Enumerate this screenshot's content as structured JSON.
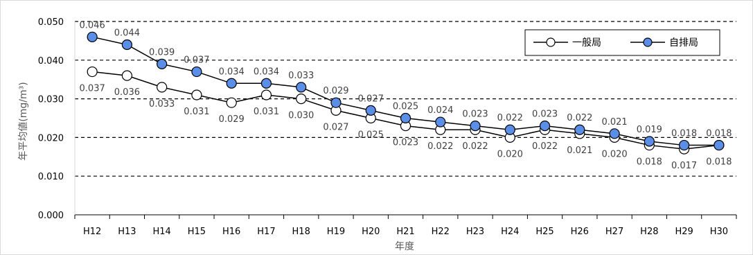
{
  "chart_data": {
    "type": "line",
    "categories": [
      "H12",
      "H13",
      "H14",
      "H15",
      "H16",
      "H17",
      "H18",
      "H19",
      "H20",
      "H21",
      "H22",
      "H23",
      "H24",
      "H25",
      "H26",
      "H27",
      "H28",
      "H29",
      "H30"
    ],
    "series": [
      {
        "name": "一般局",
        "values": [
          0.037,
          0.036,
          0.033,
          0.031,
          0.029,
          0.031,
          0.03,
          0.027,
          0.025,
          0.023,
          0.022,
          0.022,
          0.02,
          0.022,
          0.021,
          0.02,
          0.018,
          0.017,
          0.018
        ],
        "labels": [
          "0.037",
          "0.036",
          "0.033",
          "0.031",
          "0.029",
          "0.031",
          "0.030",
          "0.027",
          "0.025",
          "0.023",
          "0.022",
          "0.022",
          "0.020",
          "0.022",
          "0.021",
          "0.020",
          "0.018",
          "0.017",
          "0.018"
        ],
        "marker_fill": "#ffffff",
        "marker_stroke": "#000000",
        "line_color": "#000000"
      },
      {
        "name": "自排局",
        "values": [
          0.046,
          0.044,
          0.039,
          0.037,
          0.034,
          0.034,
          0.033,
          0.029,
          0.027,
          0.025,
          0.024,
          0.023,
          0.022,
          0.023,
          0.022,
          0.021,
          0.019,
          0.018,
          0.018
        ],
        "labels": [
          "0.046",
          "0.044",
          "0.039",
          "0.037",
          "0.034",
          "0.034",
          "0.033",
          "0.029",
          "0.027",
          "0.025",
          "0.024",
          "0.023",
          "0.022",
          "0.023",
          "0.022",
          "0.021",
          "0.019",
          "0.018",
          "0.018"
        ],
        "marker_fill": "#5b8ee6",
        "marker_stroke": "#000000",
        "line_color": "#000000"
      }
    ],
    "xlabel": "年度",
    "ylabel": "年平均値(mg/m³)",
    "ylim": [
      0,
      0.05
    ],
    "yticks": [
      "0.000",
      "0.010",
      "0.020",
      "0.030",
      "0.040",
      "0.050"
    ],
    "grid": "dashed horizontal",
    "legend_position": "top-right"
  }
}
